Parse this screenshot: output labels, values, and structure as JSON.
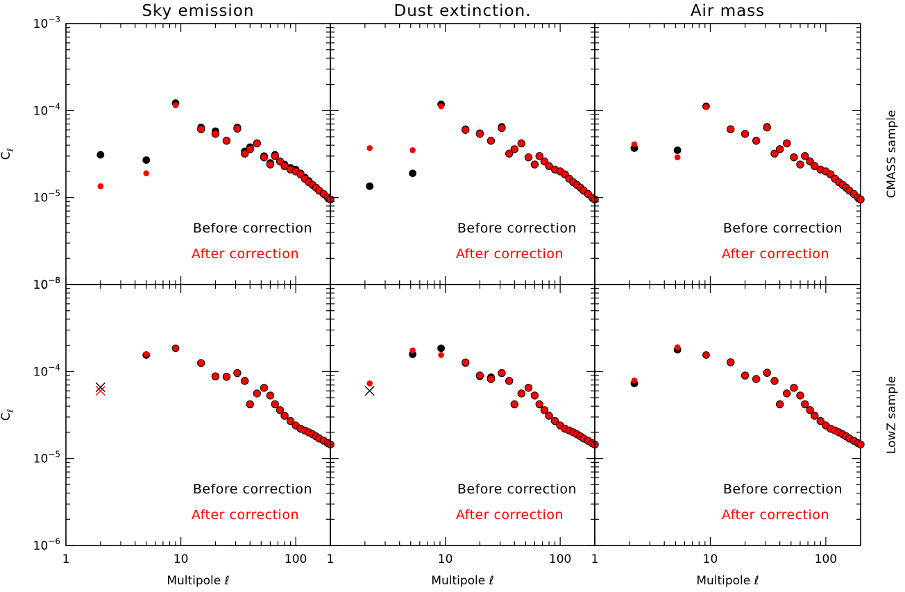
{
  "chart_data": {
    "type": "scatter",
    "x_scale": "log",
    "y_scale": "log",
    "xlim": [
      1,
      200
    ],
    "ylim": [
      1e-06,
      0.001
    ],
    "xlabel": "Multipole ℓ",
    "ylabel": "C",
    "ylabel_sub": "ℓ",
    "x_ticks": [
      {
        "value": 1,
        "label": "1"
      },
      {
        "value": 10,
        "label": "10"
      },
      {
        "value": 100,
        "label": "100"
      }
    ],
    "y_ticks": [
      {
        "value": 1e-06,
        "base": "10",
        "exp": "−6"
      },
      {
        "value": 1e-05,
        "base": "10",
        "exp": "−5"
      },
      {
        "value": 0.0001,
        "base": "10",
        "exp": "−4"
      },
      {
        "value": 0.001,
        "base": "10",
        "exp": "−3"
      }
    ],
    "columns": [
      "Sky emission",
      "Dust extinction.",
      "Air mass"
    ],
    "rows": [
      "CMASS sample",
      "LowZ sample"
    ],
    "legend": {
      "before": "Before correction",
      "after": "After correction"
    },
    "colors": {
      "before": "#000000",
      "after": "#ff0000"
    },
    "panels": [
      {
        "row": 0,
        "col": 0,
        "title": "Sky emission",
        "series": [
          {
            "name": "Before correction",
            "x": [
              2,
              5,
              9,
              15,
              20,
              25,
              31,
              36,
              40,
              46,
              53,
              60,
              66,
              73,
              80,
              90,
              100,
              110,
              120,
              130,
              140,
              150,
              160,
              175,
              190,
              200
            ],
            "y": [
              3.1e-05,
              2.7e-05,
              0.000122,
              6.4e-05,
              5.8e-05,
              4.5e-05,
              6.4e-05,
              3.4e-05,
              3.8e-05,
              4.2e-05,
              3e-05,
              2.5e-05,
              3.1e-05,
              2.6e-05,
              2.4e-05,
              2.2e-05,
              2.1e-05,
              1.9e-05,
              1.7e-05,
              1.55e-05,
              1.4e-05,
              1.3e-05,
              1.2e-05,
              1.1e-05,
              1e-05,
              9.5e-06
            ]
          },
          {
            "name": "After correction",
            "x": [
              2,
              5,
              9,
              15,
              20,
              25,
              31,
              36,
              40,
              46,
              53,
              60,
              66,
              73,
              80,
              90,
              100,
              110,
              120,
              130,
              140,
              150,
              160,
              175,
              190,
              200
            ],
            "y": [
              1.35e-05,
              1.9e-05,
              0.000115,
              6.1e-05,
              5.4e-05,
              4.5e-05,
              6.2e-05,
              3.2e-05,
              3.6e-05,
              4.2e-05,
              2.9e-05,
              2.4e-05,
              3e-05,
              2.6e-05,
              2.3e-05,
              2.1e-05,
              2e-05,
              1.85e-05,
              1.65e-05,
              1.5e-05,
              1.4e-05,
              1.3e-05,
              1.2e-05,
              1.1e-05,
              1e-05,
              9.5e-06
            ]
          }
        ]
      },
      {
        "row": 0,
        "col": 1,
        "title": "Dust extinction.",
        "series": [
          {
            "name": "Before correction",
            "x": [
              2.2,
              5.2,
              9.2,
              15,
              20,
              25,
              31,
              36,
              40,
              46,
              53,
              60,
              66,
              73,
              80,
              90,
              100,
              110,
              120,
              130,
              140,
              150,
              160,
              175,
              190,
              200
            ],
            "y": [
              1.35e-05,
              1.9e-05,
              0.000118,
              6.1e-05,
              5.5e-05,
              4.5e-05,
              6.5e-05,
              3.2e-05,
              3.6e-05,
              4.2e-05,
              2.9e-05,
              2.4e-05,
              3e-05,
              2.6e-05,
              2.3e-05,
              2.1e-05,
              2e-05,
              1.85e-05,
              1.65e-05,
              1.5e-05,
              1.4e-05,
              1.3e-05,
              1.2e-05,
              1.1e-05,
              1e-05,
              9.5e-06
            ]
          },
          {
            "name": "After correction",
            "x": [
              2.2,
              5.2,
              9.2,
              15,
              20,
              25,
              31,
              36,
              40,
              46,
              53,
              60,
              66,
              73,
              80,
              90,
              100,
              110,
              120,
              130,
              140,
              150,
              160,
              175,
              190,
              200
            ],
            "y": [
              3.7e-05,
              3.5e-05,
              0.000112,
              6e-05,
              5.4e-05,
              4.5e-05,
              6.3e-05,
              3.2e-05,
              3.6e-05,
              4.2e-05,
              2.9e-05,
              2.4e-05,
              3e-05,
              2.6e-05,
              2.3e-05,
              2.1e-05,
              2e-05,
              1.85e-05,
              1.65e-05,
              1.5e-05,
              1.4e-05,
              1.3e-05,
              1.2e-05,
              1.1e-05,
              1e-05,
              9.5e-06
            ]
          }
        ]
      },
      {
        "row": 0,
        "col": 2,
        "title": "Air mass",
        "series": [
          {
            "name": "Before correction",
            "x": [
              2.2,
              5.2,
              9.2,
              15,
              20,
              25,
              31,
              36,
              40,
              46,
              53,
              60,
              66,
              73,
              80,
              90,
              100,
              110,
              120,
              130,
              140,
              150,
              160,
              175,
              190,
              200
            ],
            "y": [
              3.7e-05,
              3.5e-05,
              0.000112,
              6.1e-05,
              5.4e-05,
              4.5e-05,
              6.5e-05,
              3.2e-05,
              3.6e-05,
              4.2e-05,
              2.9e-05,
              2.4e-05,
              3e-05,
              2.6e-05,
              2.3e-05,
              2.1e-05,
              2e-05,
              1.85e-05,
              1.65e-05,
              1.5e-05,
              1.4e-05,
              1.3e-05,
              1.2e-05,
              1.1e-05,
              1e-05,
              9.5e-06
            ]
          },
          {
            "name": "After correction",
            "x": [
              2.2,
              5.2,
              9.2,
              15,
              20,
              25,
              31,
              36,
              40,
              46,
              53,
              60,
              66,
              73,
              80,
              90,
              100,
              110,
              120,
              130,
              140,
              150,
              160,
              175,
              190,
              200
            ],
            "y": [
              4.1e-05,
              2.9e-05,
              0.00011,
              6.1e-05,
              5.4e-05,
              4.5e-05,
              6.4e-05,
              3.2e-05,
              3.6e-05,
              4.2e-05,
              2.9e-05,
              2.4e-05,
              3e-05,
              2.6e-05,
              2.3e-05,
              2.1e-05,
              2e-05,
              1.85e-05,
              1.65e-05,
              1.5e-05,
              1.4e-05,
              1.3e-05,
              1.2e-05,
              1.1e-05,
              1e-05,
              9.5e-06
            ]
          }
        ]
      },
      {
        "row": 1,
        "col": 0,
        "title": "Sky emission",
        "series": [
          {
            "name": "Before correction",
            "x": [
              2,
              5,
              9,
              15,
              20,
              25,
              31,
              36,
              40,
              46,
              53,
              60,
              66,
              73,
              80,
              90,
              100,
              110,
              120,
              130,
              140,
              150,
              160,
              175,
              190,
              200
            ],
            "y": [
              6.6e-05,
              0.000155,
              0.000185,
              0.000125,
              8.8e-05,
              8.7e-05,
              9.6e-05,
              7.8e-05,
              4.2e-05,
              5.6e-05,
              6.5e-05,
              5.3e-05,
              4.2e-05,
              3.6e-05,
              3.1e-05,
              2.7e-05,
              2.4e-05,
              2.2e-05,
              2.1e-05,
              2e-05,
              1.9e-05,
              1.8e-05,
              1.7e-05,
              1.6e-05,
              1.5e-05,
              1.45e-05
            ],
            "markers": [
              "x",
              "o",
              "o",
              "o",
              "o",
              "o",
              "o",
              "o",
              "o",
              "o",
              "o",
              "o",
              "o",
              "o",
              "o",
              "o",
              "o",
              "o",
              "o",
              "o",
              "o",
              "o",
              "o",
              "o",
              "o",
              "o"
            ]
          },
          {
            "name": "After correction",
            "x": [
              2,
              5,
              9,
              15,
              20,
              25,
              31,
              36,
              40,
              46,
              53,
              60,
              66,
              73,
              80,
              90,
              100,
              110,
              120,
              130,
              140,
              150,
              160,
              175,
              190,
              200
            ],
            "y": [
              6e-05,
              0.000158,
              0.000185,
              0.000125,
              8.8e-05,
              8.7e-05,
              9.6e-05,
              7.8e-05,
              4.2e-05,
              5.6e-05,
              6.5e-05,
              5.3e-05,
              4.2e-05,
              3.6e-05,
              3.1e-05,
              2.7e-05,
              2.4e-05,
              2.2e-05,
              2.1e-05,
              2e-05,
              1.9e-05,
              1.8e-05,
              1.7e-05,
              1.6e-05,
              1.5e-05,
              1.45e-05
            ],
            "markers": [
              "x",
              "o",
              "o",
              "o",
              "o",
              "o",
              "o",
              "o",
              "o",
              "o",
              "o",
              "o",
              "o",
              "o",
              "o",
              "o",
              "o",
              "o",
              "o",
              "o",
              "o",
              "o",
              "o",
              "o",
              "o",
              "o"
            ]
          }
        ]
      },
      {
        "row": 1,
        "col": 1,
        "title": "Dust extinction.",
        "series": [
          {
            "name": "Before correction",
            "x": [
              2.2,
              5.2,
              9.2,
              15,
              20,
              25,
              31,
              36,
              40,
              46,
              53,
              60,
              66,
              73,
              80,
              90,
              100,
              110,
              120,
              130,
              140,
              150,
              160,
              175,
              190,
              200
            ],
            "y": [
              6e-05,
              0.000158,
              0.000185,
              0.000125,
              8.8e-05,
              8.6e-05,
              9.6e-05,
              7.8e-05,
              4.2e-05,
              5.6e-05,
              6.5e-05,
              5.3e-05,
              4.2e-05,
              3.6e-05,
              3.1e-05,
              2.7e-05,
              2.4e-05,
              2.2e-05,
              2.1e-05,
              2e-05,
              1.9e-05,
              1.8e-05,
              1.7e-05,
              1.6e-05,
              1.5e-05,
              1.45e-05
            ],
            "markers": [
              "x",
              "o",
              "o",
              "o",
              "o",
              "o",
              "o",
              "o",
              "o",
              "o",
              "o",
              "o",
              "o",
              "o",
              "o",
              "o",
              "o",
              "o",
              "o",
              "o",
              "o",
              "o",
              "o",
              "o",
              "o",
              "o"
            ]
          },
          {
            "name": "After correction",
            "x": [
              2.2,
              5.2,
              9.2,
              15,
              20,
              25,
              31,
              36,
              40,
              46,
              53,
              60,
              66,
              73,
              80,
              90,
              100,
              110,
              120,
              130,
              140,
              150,
              160,
              175,
              190,
              200
            ],
            "y": [
              7.3e-05,
              0.000175,
              0.000155,
              0.000127,
              9e-05,
              8.2e-05,
              9.6e-05,
              7.8e-05,
              4.2e-05,
              5.6e-05,
              6.5e-05,
              5.3e-05,
              4.2e-05,
              3.6e-05,
              3.1e-05,
              2.7e-05,
              2.4e-05,
              2.2e-05,
              2.1e-05,
              2e-05,
              1.9e-05,
              1.8e-05,
              1.7e-05,
              1.6e-05,
              1.5e-05,
              1.45e-05
            ]
          }
        ]
      },
      {
        "row": 1,
        "col": 2,
        "title": "Air mass",
        "series": [
          {
            "name": "Before correction",
            "x": [
              2.2,
              5.2,
              9.2,
              15,
              20,
              25,
              31,
              36,
              40,
              46,
              53,
              60,
              66,
              73,
              80,
              90,
              100,
              110,
              120,
              130,
              140,
              150,
              160,
              175,
              190,
              200
            ],
            "y": [
              7.3e-05,
              0.000178,
              0.000155,
              0.000127,
              9e-05,
              8.2e-05,
              9.6e-05,
              7.8e-05,
              4.2e-05,
              5.6e-05,
              6.5e-05,
              5.3e-05,
              4.2e-05,
              3.6e-05,
              3.1e-05,
              2.7e-05,
              2.4e-05,
              2.2e-05,
              2.1e-05,
              2e-05,
              1.9e-05,
              1.8e-05,
              1.7e-05,
              1.6e-05,
              1.5e-05,
              1.45e-05
            ]
          },
          {
            "name": "After correction",
            "x": [
              2.2,
              5.2,
              9.2,
              15,
              20,
              25,
              31,
              36,
              40,
              46,
              53,
              60,
              66,
              73,
              80,
              90,
              100,
              110,
              120,
              130,
              140,
              150,
              160,
              175,
              190,
              200
            ],
            "y": [
              7.9e-05,
              0.00019,
              0.000155,
              0.000128,
              9e-05,
              8.2e-05,
              9.7e-05,
              7.8e-05,
              4.2e-05,
              5.6e-05,
              6.5e-05,
              5.3e-05,
              4.2e-05,
              3.6e-05,
              3.1e-05,
              2.7e-05,
              2.4e-05,
              2.2e-05,
              2.1e-05,
              2e-05,
              1.9e-05,
              1.8e-05,
              1.7e-05,
              1.6e-05,
              1.5e-05,
              1.45e-05
            ]
          }
        ]
      }
    ]
  }
}
